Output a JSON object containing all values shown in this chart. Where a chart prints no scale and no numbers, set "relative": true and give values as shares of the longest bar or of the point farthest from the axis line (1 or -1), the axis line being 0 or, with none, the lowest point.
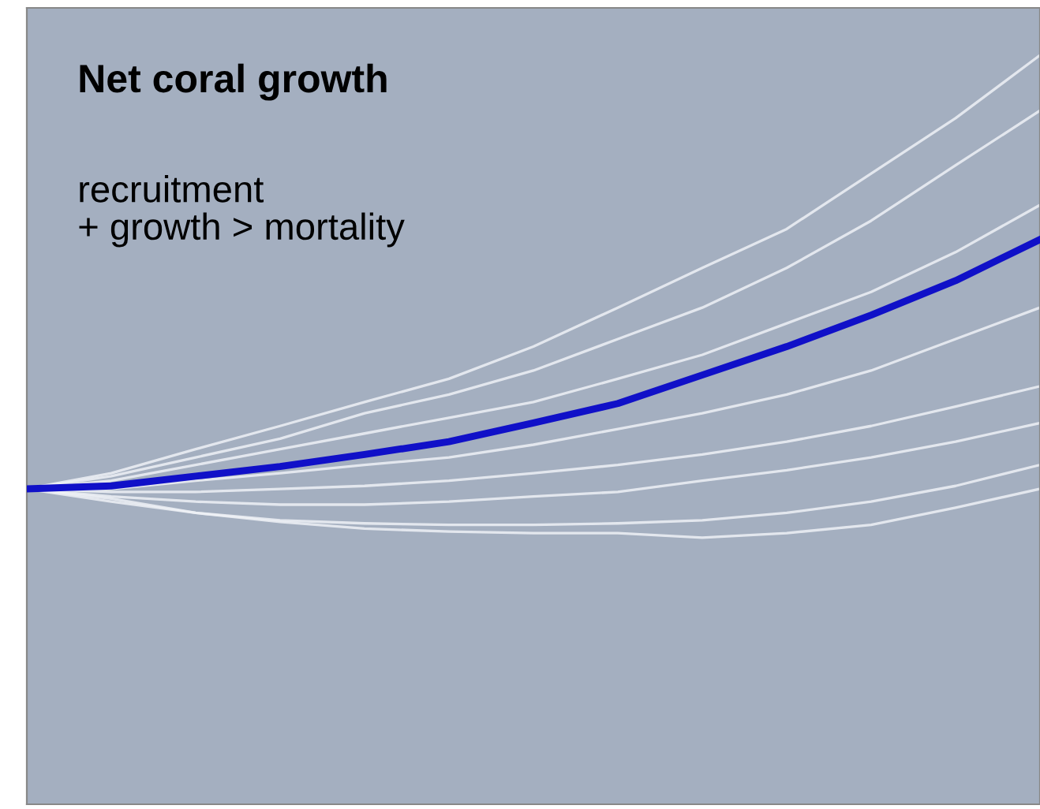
{
  "chart_data": {
    "type": "line",
    "title": "Net coral growth",
    "annotations": [
      "recruitment\n+ growth > mortality"
    ],
    "relative": true,
    "grid": false,
    "legend": false,
    "marker": "none",
    "line_style": "solid",
    "categories": [
      null,
      null,
      null,
      null,
      null,
      null,
      null,
      null,
      null,
      null,
      null,
      null,
      null
    ],
    "series": [
      {
        "color": "#eef1f6",
        "values": [
          0.421,
          0.442,
          0.474,
          0.505,
          0.537,
          0.568,
          0.611,
          0.663,
          0.716,
          0.768,
          0.842,
          0.916,
          1
        ]
      },
      {
        "color": "#eef1f6",
        "values": [
          0.421,
          0.438,
          0.463,
          0.488,
          0.522,
          0.547,
          0.579,
          0.621,
          0.663,
          0.716,
          0.779,
          0.853,
          0.926
        ]
      },
      {
        "color": "#eef1f6",
        "values": [
          0.421,
          0.432,
          0.453,
          0.474,
          0.495,
          0.516,
          0.537,
          0.568,
          0.6,
          0.642,
          0.684,
          0.737,
          0.8
        ]
      },
      {
        "color": "#eef1f6",
        "values": [
          0.421,
          0.421,
          0.432,
          0.442,
          0.453,
          0.463,
          0.48,
          0.501,
          0.522,
          0.547,
          0.579,
          0.621,
          0.663
        ]
      },
      {
        "color": "#eef1f6",
        "values": [
          0.421,
          0.417,
          0.417,
          0.421,
          0.425,
          0.432,
          0.442,
          0.453,
          0.467,
          0.484,
          0.505,
          0.531,
          0.558
        ]
      },
      {
        "color": "#eef1f6",
        "values": [
          0.421,
          0.411,
          0.404,
          0.4,
          0.4,
          0.404,
          0.411,
          0.417,
          0.432,
          0.446,
          0.463,
          0.484,
          0.509
        ]
      },
      {
        "color": "#eef1f6",
        "values": [
          0.421,
          0.404,
          0.389,
          0.379,
          0.375,
          0.373,
          0.373,
          0.375,
          0.379,
          0.389,
          0.404,
          0.425,
          0.453
        ]
      },
      {
        "color": "#eef1f6",
        "values": [
          0.421,
          0.408,
          0.389,
          0.377,
          0.368,
          0.364,
          0.362,
          0.362,
          0.356,
          0.362,
          0.373,
          0.396,
          0.421
        ]
      },
      {
        "color": "#1010c8",
        "values": [
          0.421,
          0.425,
          0.438,
          0.451,
          0.467,
          0.484,
          0.509,
          0.535,
          0.573,
          0.611,
          0.653,
          0.699,
          0.754
        ]
      }
    ]
  }
}
